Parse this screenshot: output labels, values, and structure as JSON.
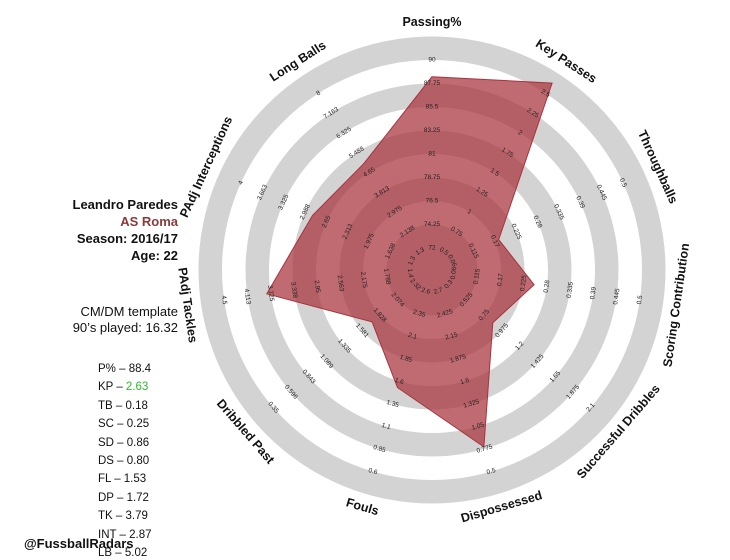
{
  "player": {
    "name": "Leandro Paredes",
    "club": "AS Roma",
    "season": "Season: 2016/17",
    "age": "Age: 22",
    "template": "CM/DM template",
    "minutes": "90’s played: 16.32",
    "handle": "@FussballRadars"
  },
  "stats": [
    {
      "label": "P% – ",
      "value": "88.4",
      "highlight": false
    },
    {
      "label": "KP – ",
      "value": "2.63",
      "highlight": true
    },
    {
      "label": "TB – ",
      "value": "0.18",
      "highlight": false
    },
    {
      "label": "SC – ",
      "value": "0.25",
      "highlight": false
    },
    {
      "label": "SD – ",
      "value": "0.86",
      "highlight": false
    },
    {
      "label": "DS – ",
      "value": "0.80",
      "highlight": false
    },
    {
      "label": "FL – ",
      "value": "1.53",
      "highlight": false
    },
    {
      "label": "DP – ",
      "value": "1.72",
      "highlight": false
    },
    {
      "label": "TK – ",
      "value": "3.79",
      "highlight": false
    },
    {
      "label": "INT – ",
      "value": "2.87",
      "highlight": false
    },
    {
      "label": "LB – ",
      "value": "5.02",
      "highlight": false
    }
  ],
  "colors": {
    "fill": "#a8323c",
    "ring_gray": "#d3d3d3",
    "highlight": "#2db82d",
    "club": "#8b3a3a"
  },
  "chart_data": {
    "type": "radar",
    "axes": [
      {
        "name": "Passing%",
        "ticks": [
          "72",
          "74.25",
          "76.5",
          "78.75",
          "81",
          "83.25",
          "85.5",
          "87.75",
          "90"
        ],
        "value": 88.4
      },
      {
        "name": "Key Passes",
        "ticks": [
          "0.5",
          "0.75",
          "1",
          "1.25",
          "1.5",
          "1.75",
          "2",
          "2.25",
          "2.5"
        ],
        "value": 2.63
      },
      {
        "name": "Throughballs",
        "ticks": [
          "0.06",
          "0.115",
          "0.17",
          "0.225",
          "0.28",
          "0.335",
          "0.39",
          "0.445",
          "0.5"
        ],
        "value": 0.18
      },
      {
        "name": "Scoring Contribution",
        "ticks": [
          "0.06",
          "0.115",
          "0.17",
          "0.225",
          "0.28",
          "0.335",
          "0.39",
          "0.445",
          "0.5"
        ],
        "value": 0.25
      },
      {
        "name": "Successful Dribbles",
        "ticks": [
          "0.3",
          "0.525",
          "0.75",
          "0.975",
          "1.2",
          "1.425",
          "1.65",
          "1.875",
          "2.1"
        ],
        "value": 0.86
      },
      {
        "name": "Dispossessed",
        "ticks": [
          "2.7",
          "2.425",
          "2.15",
          "1.875",
          "1.6",
          "1.325",
          "1.05",
          "0.775",
          "0.5"
        ],
        "value": 0.8
      },
      {
        "name": "Fouls",
        "ticks": [
          "2.6",
          "2.35",
          "2.1",
          "1.85",
          "1.6",
          "1.35",
          "1.1",
          "0.85",
          "0.6"
        ],
        "value": 1.53
      },
      {
        "name": "Dribbled Past",
        "ticks": [
          "2.32",
          "2.074",
          "1.828",
          "1.581",
          "1.335",
          "1.089",
          "0.843",
          "0.596",
          "0.35"
        ],
        "value": 1.72
      },
      {
        "name": "PAdj Tackles",
        "ticks": [
          "1.4",
          "1.788",
          "2.175",
          "2.563",
          "2.95",
          "3.338",
          "3.725",
          "4.113",
          "4.5"
        ],
        "value": 3.79
      },
      {
        "name": "PAdj Interceptions",
        "ticks": [
          "1.3",
          "1.638",
          "1.975",
          "2.313",
          "2.65",
          "2.988",
          "3.325",
          "3.663",
          "4"
        ],
        "value": 2.87
      },
      {
        "name": "Long Balls",
        "ticks": [
          "1.3",
          "2.138",
          "2.975",
          "3.813",
          "4.65",
          "5.488",
          "6.325",
          "7.163",
          "8"
        ],
        "value": 5.02
      }
    ],
    "tick_axes_shown": [
      "Passing%",
      "Key Passes",
      "Throughballs",
      "Scoring Contribution",
      "Successful Dribbles",
      "Dispossessed",
      "Fouls",
      "Dribbled Past",
      "PAdj Tackles",
      "PAdj Interceptions",
      "Long Balls"
    ],
    "rings": 9,
    "title": ""
  }
}
